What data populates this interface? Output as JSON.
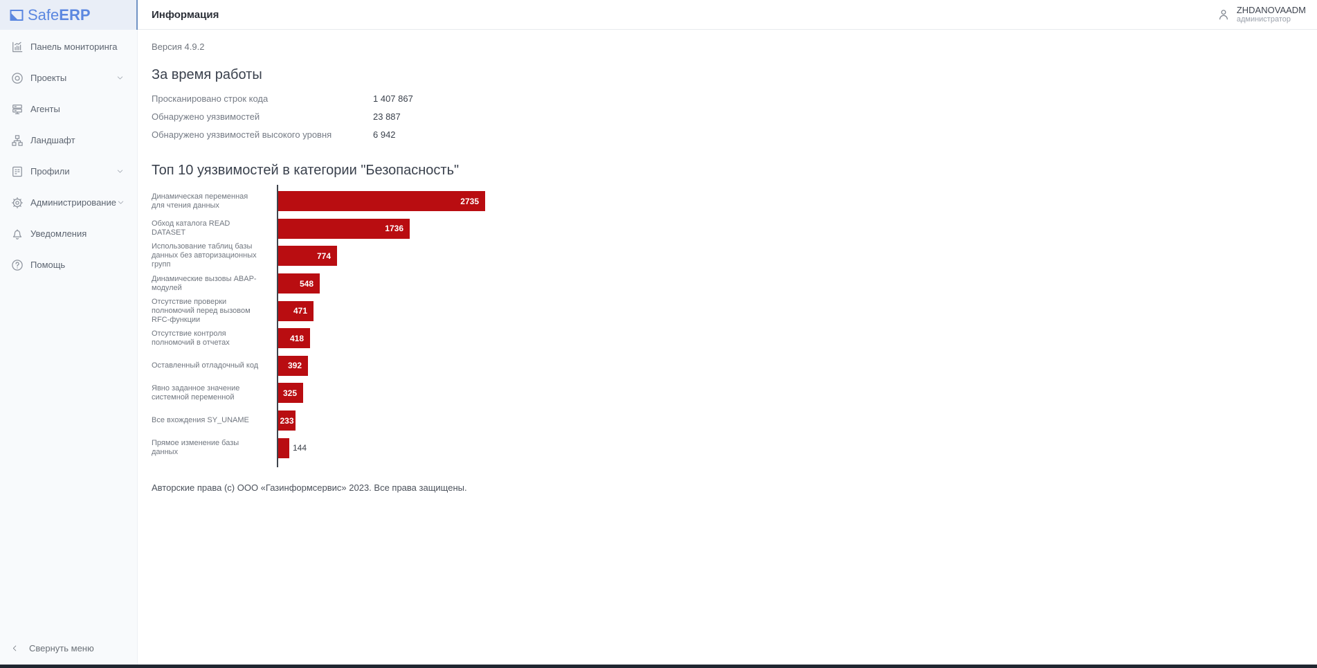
{
  "app": {
    "brand_safe": "Safe",
    "brand_erp": "ERP"
  },
  "header": {
    "title": "Информация",
    "user": {
      "name": "ZHDANOVAADM",
      "role": "администратор",
      "icon": "user-icon"
    }
  },
  "sidebar": {
    "items": [
      {
        "id": "dashboard",
        "label": "Панель мониторинга",
        "icon": "dashboard-icon",
        "expandable": false
      },
      {
        "id": "projects",
        "label": "Проекты",
        "icon": "projects-icon",
        "expandable": true
      },
      {
        "id": "agents",
        "label": "Агенты",
        "icon": "agents-icon",
        "expandable": false
      },
      {
        "id": "landscape",
        "label": "Ландшафт",
        "icon": "landscape-icon",
        "expandable": false
      },
      {
        "id": "profiles",
        "label": "Профили",
        "icon": "profiles-icon",
        "expandable": true
      },
      {
        "id": "administration",
        "label": "Администрирование",
        "icon": "administration-icon",
        "expandable": true
      },
      {
        "id": "notifications",
        "label": "Уведомления",
        "icon": "notifications-icon",
        "expandable": false
      },
      {
        "id": "help",
        "label": "Помощь",
        "icon": "help-icon",
        "expandable": false
      }
    ],
    "collapse": {
      "label": "Свернуть меню",
      "icon": "chevron-left-icon"
    }
  },
  "main": {
    "version": "Версия 4.9.2",
    "stats": {
      "title": "За время работы",
      "rows": [
        {
          "label": "Просканировано строк кода",
          "value": "1 407 867"
        },
        {
          "label": "Обнаружено уязвимостей",
          "value": "23 887"
        },
        {
          "label": "Обнаружено уязвимостей высокого уровня",
          "value": "6 942"
        }
      ]
    },
    "footer": "Авторские права (с) ООО «Газинформсервис» 2023. Все права защищены."
  },
  "chart_data": {
    "type": "bar",
    "orientation": "horizontal",
    "title": "Топ 10 уязвимостей в категории \"Безопасность\"",
    "categories": [
      "Динамическая переменная для чтения данных",
      "Обход каталога READ DATASET",
      "Использование таблиц базы данных без авторизационных групп",
      "Динамические вызовы ABAP-модулей",
      "Отсутствие проверки полномочий перед вызовом RFC-функции",
      "Отсутствие контроля полномочий в отчетах",
      "Оставленный отладочный код",
      "Явно заданное значение системной переменной",
      "Все вхождения SY_UNAME",
      "Прямое изменение базы данных"
    ],
    "values": [
      2735,
      1736,
      774,
      548,
      471,
      418,
      392,
      325,
      233,
      144
    ],
    "xlim": [
      0,
      2735
    ],
    "bar_color": "#b90d11",
    "value_labels": "on_bars",
    "grid": false,
    "legend": false
  },
  "colors": {
    "brand_blue": "#5b87e0",
    "bar_red": "#b90d11",
    "sidebar_bg": "#f8fafc",
    "logo_band_bg": "#e9eef7",
    "divider_blue": "#7092c4",
    "bottom_edge": "#1f2630"
  }
}
